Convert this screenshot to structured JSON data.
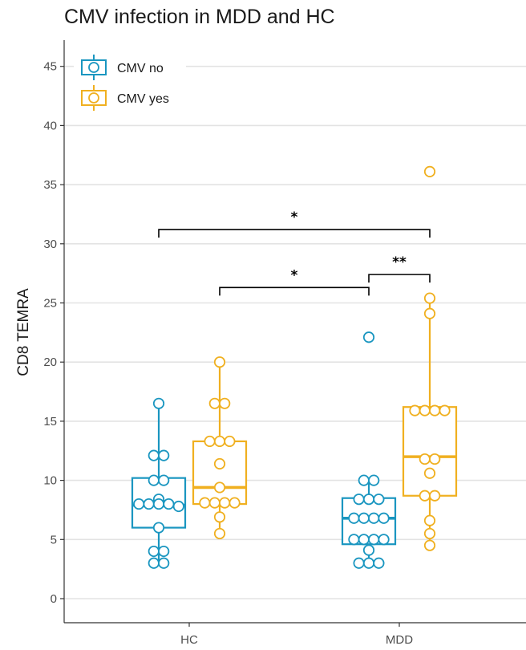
{
  "chart_data": {
    "type": "box",
    "title": "CMV infection in MDD and HC",
    "xlabel": "",
    "ylabel": "CD8 TEMRA",
    "ylim": [
      -2,
      46
    ],
    "yticks": [
      0,
      5,
      10,
      15,
      20,
      25,
      30,
      35,
      40,
      45
    ],
    "grid": "horizontal",
    "legend_placement": "top-left",
    "categories": [
      "HC",
      "MDD"
    ],
    "series": [
      {
        "name": "CMV no",
        "color": "#1a96c0",
        "boxes": [
          {
            "category": "HC",
            "min": 3,
            "q1": 6,
            "median": 7.9,
            "q3": 10.2,
            "max": 16.5,
            "outliers": [],
            "points": [
              16.5,
              12.1,
              12.1,
              10,
              10,
              8.4,
              8,
              8,
              8,
              8,
              7.8,
              6,
              4,
              4,
              3,
              3
            ]
          },
          {
            "category": "MDD",
            "min": 3,
            "q1": 4.6,
            "median": 6.8,
            "q3": 8.5,
            "max": 10,
            "outliers": [
              22.1
            ],
            "points": [
              10,
              10,
              8.4,
              8.4,
              8.4,
              6.8,
              6.8,
              6.8,
              6.8,
              5,
              5,
              5,
              5,
              4.1,
              3,
              3,
              3,
              22.1
            ]
          }
        ]
      },
      {
        "name": "CMV yes",
        "color": "#f0b020",
        "boxes": [
          {
            "category": "HC",
            "min": 5.5,
            "q1": 8,
            "median": 9.4,
            "q3": 13.3,
            "max": 20,
            "outliers": [],
            "points": [
              20,
              16.5,
              16.5,
              13.3,
              13.3,
              13.3,
              11.4,
              9.4,
              8.1,
              8.1,
              8.1,
              8.1,
              6.9,
              5.5
            ]
          },
          {
            "category": "MDD",
            "min": 4.5,
            "q1": 8.7,
            "median": 12,
            "q3": 16.2,
            "max": 25.4,
            "outliers": [
              36.1
            ],
            "points": [
              36.1,
              25.4,
              24.1,
              15.9,
              15.9,
              15.9,
              15.9,
              11.8,
              11.8,
              10.6,
              8.7,
              8.7,
              6.6,
              5.5,
              4.5
            ]
          }
        ]
      }
    ],
    "significance": [
      {
        "from_group": "HC",
        "from_series": "CMV no",
        "to_group": "MDD",
        "to_series": "CMV yes",
        "y": 31.2,
        "label": "*"
      },
      {
        "from_group": "HC",
        "from_series": "CMV yes",
        "to_group": "MDD",
        "to_series": "CMV no",
        "y": 26.3,
        "label": "*"
      },
      {
        "from_group": "MDD",
        "from_series": "CMV no",
        "to_group": "MDD",
        "to_series": "CMV yes",
        "y": 27.4,
        "label": "**"
      }
    ]
  }
}
